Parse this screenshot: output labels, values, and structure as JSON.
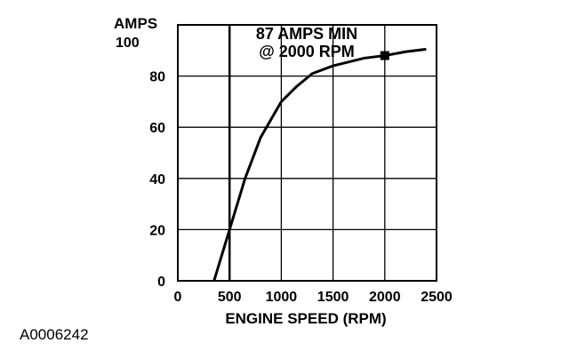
{
  "chart_data": {
    "type": "line",
    "xlabel": "ENGINE SPEED (RPM)",
    "ylabel": "AMPS",
    "xlim": [
      0,
      2500
    ],
    "ylim": [
      0,
      100
    ],
    "x_ticks": [
      "0",
      "500",
      "1000",
      "1500",
      "2000",
      "2500"
    ],
    "y_ticks": [
      "0",
      "20",
      "40",
      "60",
      "80",
      "100"
    ],
    "grid": true,
    "series": [
      {
        "x": [
          350,
          500,
          650,
          800,
          1000,
          1150,
          1300,
          1500,
          1800,
          2000,
          2200,
          2400
        ],
        "y": [
          0,
          20,
          40,
          56,
          70,
          76,
          81,
          84,
          87,
          88,
          89.5,
          90.5
        ]
      }
    ],
    "marker_point": {
      "x": 2000,
      "y": 88
    },
    "annotation": [
      "87 AMPS MIN",
      "@ 2000 RPM"
    ]
  },
  "figure_id": "A0006242"
}
